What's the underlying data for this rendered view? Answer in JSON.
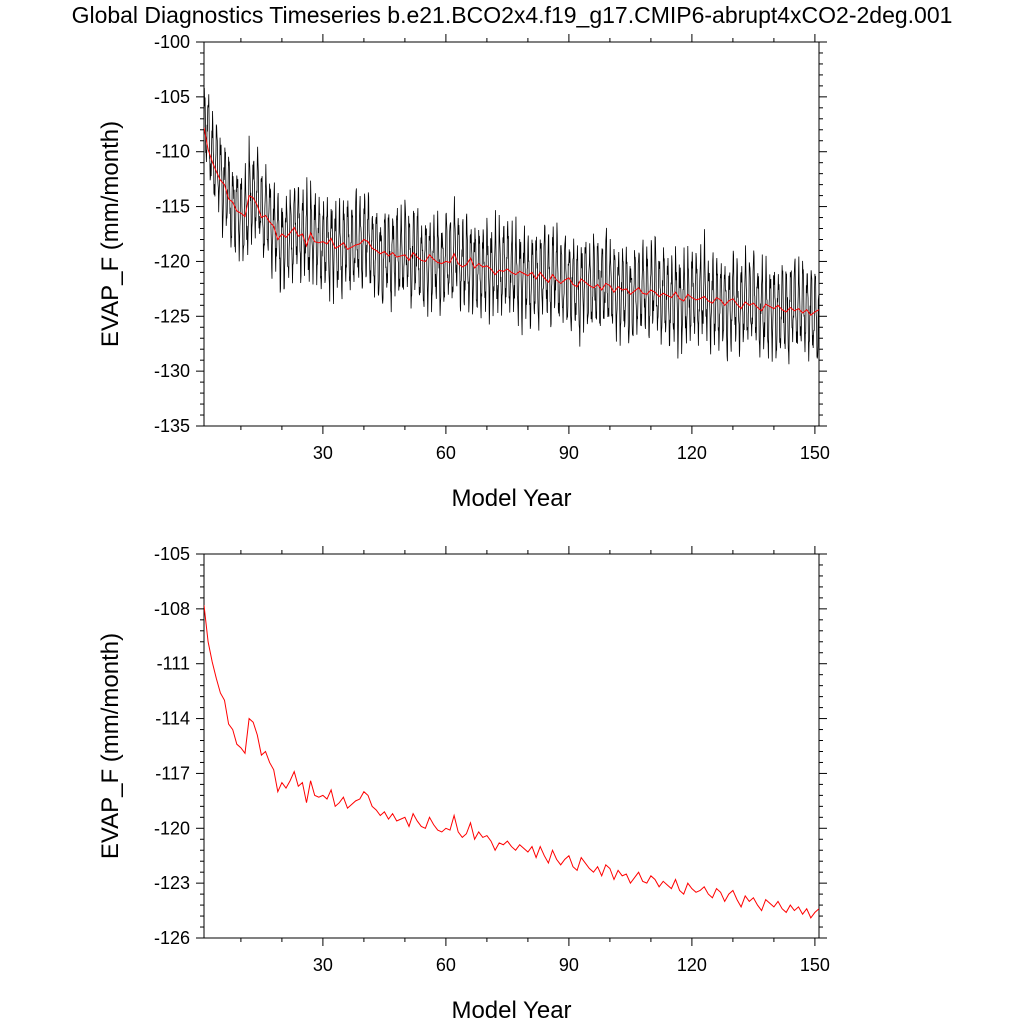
{
  "title": "Global Diagnostics Timeseries b.e21.BCO2x4.f19_g17.CMIP6-abrupt4xCO2-2deg.001",
  "colors": {
    "monthly": "#000000",
    "annual": "#ff0000",
    "frame": "#000000"
  },
  "chart_data": [
    {
      "type": "line",
      "name": "monthly-panel",
      "xlabel": "Model Year",
      "ylabel": "EVAP_F (mm/month)",
      "xlim": [
        1,
        151
      ],
      "ylim": [
        -135,
        -100
      ],
      "xticks": [
        30,
        60,
        90,
        120,
        150
      ],
      "xtick_labels": [
        "30",
        "60",
        "90",
        "120",
        "150"
      ],
      "yticks": [
        -100,
        -105,
        -110,
        -115,
        -120,
        -125,
        -130,
        -135
      ],
      "ytick_labels": [
        "-100",
        "-105",
        "-110",
        "-115",
        "-120",
        "-125",
        "-130",
        "-135"
      ],
      "series": [
        {
          "name": "monthly",
          "color": "#000000",
          "note": "monthly values oscillating about the annual mean",
          "seasonal_amplitude": 4.5
        },
        {
          "name": "annual_mean",
          "color": "#ff0000"
        }
      ]
    },
    {
      "type": "line",
      "name": "annual-panel",
      "xlabel": "Model Year",
      "ylabel": "EVAP_F (mm/month)",
      "xlim": [
        1,
        151
      ],
      "ylim": [
        -126,
        -105
      ],
      "xticks": [
        30,
        60,
        90,
        120,
        150
      ],
      "xtick_labels": [
        "30",
        "60",
        "90",
        "120",
        "150"
      ],
      "yticks": [
        -105,
        -108,
        -111,
        -114,
        -117,
        -120,
        -123,
        -126
      ],
      "ytick_labels": [
        "-105",
        "-108",
        "-111",
        "-114",
        "-117",
        "-120",
        "-123",
        "-126"
      ],
      "series": [
        {
          "name": "annual_mean",
          "color": "#ff0000"
        }
      ]
    }
  ],
  "annual_mean": {
    "x_start": 1,
    "values": [
      -107.8,
      -109.8,
      -110.9,
      -111.8,
      -112.6,
      -113.0,
      -114.3,
      -114.6,
      -115.4,
      -115.6,
      -115.9,
      -114.0,
      -114.2,
      -114.9,
      -116.0,
      -115.8,
      -116.4,
      -116.8,
      -118.0,
      -117.5,
      -117.8,
      -117.4,
      -116.9,
      -117.7,
      -117.5,
      -118.6,
      -117.4,
      -118.2,
      -118.3,
      -118.2,
      -118.4,
      -117.9,
      -118.8,
      -118.6,
      -118.3,
      -118.9,
      -118.7,
      -118.5,
      -118.4,
      -118.0,
      -118.2,
      -118.8,
      -119.0,
      -119.3,
      -119.1,
      -119.5,
      -119.2,
      -119.6,
      -119.5,
      -119.4,
      -119.9,
      -119.2,
      -119.6,
      -119.9,
      -120.0,
      -119.4,
      -119.8,
      -120.1,
      -120.2,
      -120.0,
      -120.1,
      -119.3,
      -120.2,
      -120.5,
      -120.3,
      -119.7,
      -120.6,
      -120.2,
      -120.5,
      -120.4,
      -120.7,
      -121.2,
      -120.8,
      -120.9,
      -120.7,
      -121.0,
      -121.2,
      -120.9,
      -121.1,
      -121.3,
      -121.0,
      -121.6,
      -121.0,
      -121.5,
      -121.9,
      -121.2,
      -121.7,
      -122.0,
      -121.7,
      -121.5,
      -122.1,
      -122.3,
      -121.6,
      -121.9,
      -122.2,
      -122.4,
      -122.1,
      -122.6,
      -122.0,
      -122.2,
      -122.8,
      -122.3,
      -122.6,
      -122.5,
      -123.0,
      -122.7,
      -122.4,
      -122.9,
      -123.0,
      -122.6,
      -122.8,
      -123.2,
      -122.9,
      -123.1,
      -123.3,
      -122.8,
      -123.4,
      -123.6,
      -123.0,
      -123.3,
      -123.5,
      -123.4,
      -123.2,
      -123.6,
      -123.8,
      -123.3,
      -123.5,
      -124.0,
      -123.6,
      -123.4,
      -123.9,
      -124.3,
      -123.7,
      -124.0,
      -123.8,
      -124.2,
      -124.5,
      -123.9,
      -124.1,
      -124.3,
      -124.0,
      -124.4,
      -124.6,
      -124.2,
      -124.5,
      -124.3,
      -124.7,
      -124.4,
      -124.9,
      -124.6,
      -124.4
    ]
  },
  "axis_text": {
    "p1": {
      "xlabel": "Model Year",
      "ylabel": "EVAP_F (mm/month)"
    },
    "p2": {
      "xlabel": "Model Year",
      "ylabel": "EVAP_F (mm/month)"
    }
  }
}
